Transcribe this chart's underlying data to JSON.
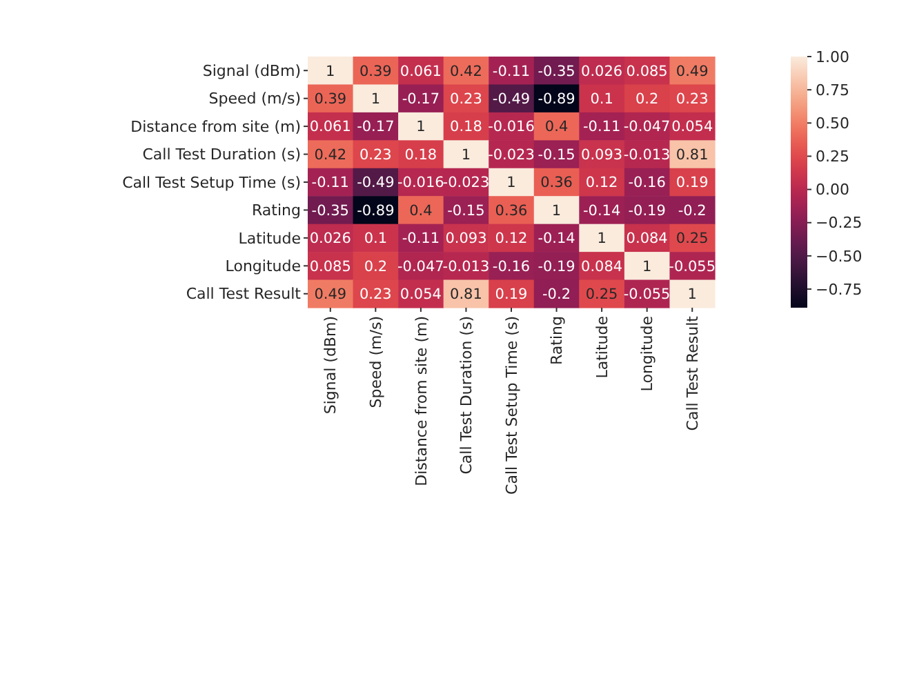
{
  "chart_data": {
    "type": "heatmap",
    "categories": [
      "Signal (dBm)",
      "Speed (m/s)",
      "Distance from site (m)",
      "Call Test Duration (s)",
      "Call Test Setup Time (s)",
      "Rating",
      "Latitude",
      "Longitude",
      "Call Test Result"
    ],
    "y_categories": [
      "Signal (dBm)",
      "Speed (m/s)",
      "Distance from site (m)",
      "Call Test Duration (s)",
      "Call Test Setup Time (s)",
      "Rating",
      "Latitude",
      "Longitude",
      "Call Test Result"
    ],
    "cells": [
      [
        1,
        0.39,
        0.061,
        0.42,
        -0.11,
        -0.35,
        0.026,
        0.085,
        0.49
      ],
      [
        0.39,
        1,
        -0.17,
        0.23,
        -0.49,
        -0.89,
        0.1,
        0.2,
        0.23
      ],
      [
        0.061,
        -0.17,
        1,
        0.18,
        -0.016,
        0.4,
        -0.11,
        -0.047,
        0.054
      ],
      [
        0.42,
        0.23,
        0.18,
        1,
        -0.023,
        -0.15,
        0.093,
        -0.013,
        0.81
      ],
      [
        -0.11,
        -0.49,
        -0.016,
        -0.023,
        1,
        0.36,
        0.12,
        -0.16,
        0.19
      ],
      [
        -0.35,
        -0.89,
        0.4,
        -0.15,
        0.36,
        1,
        -0.14,
        -0.19,
        -0.2
      ],
      [
        0.026,
        0.1,
        -0.11,
        0.093,
        0.12,
        -0.14,
        1,
        0.084,
        0.25
      ],
      [
        0.085,
        0.2,
        -0.047,
        -0.013,
        -0.16,
        -0.19,
        0.084,
        1,
        -0.055
      ],
      [
        0.49,
        0.23,
        0.054,
        0.81,
        0.19,
        -0.2,
        0.25,
        -0.055,
        1
      ]
    ],
    "data_labels": true,
    "clim": [
      -0.89,
      1
    ],
    "cticks": [
      {
        "value": 1,
        "label": "1.00"
      },
      {
        "value": 0.75,
        "label": "0.75"
      },
      {
        "value": 0.5,
        "label": "0.50"
      },
      {
        "value": 0.25,
        "label": "0.25"
      },
      {
        "value": 0,
        "label": "0.00"
      },
      {
        "value": -0.25,
        "label": "−0.25"
      },
      {
        "value": -0.5,
        "label": "−0.50"
      },
      {
        "value": -0.75,
        "label": "−0.75"
      }
    ]
  }
}
